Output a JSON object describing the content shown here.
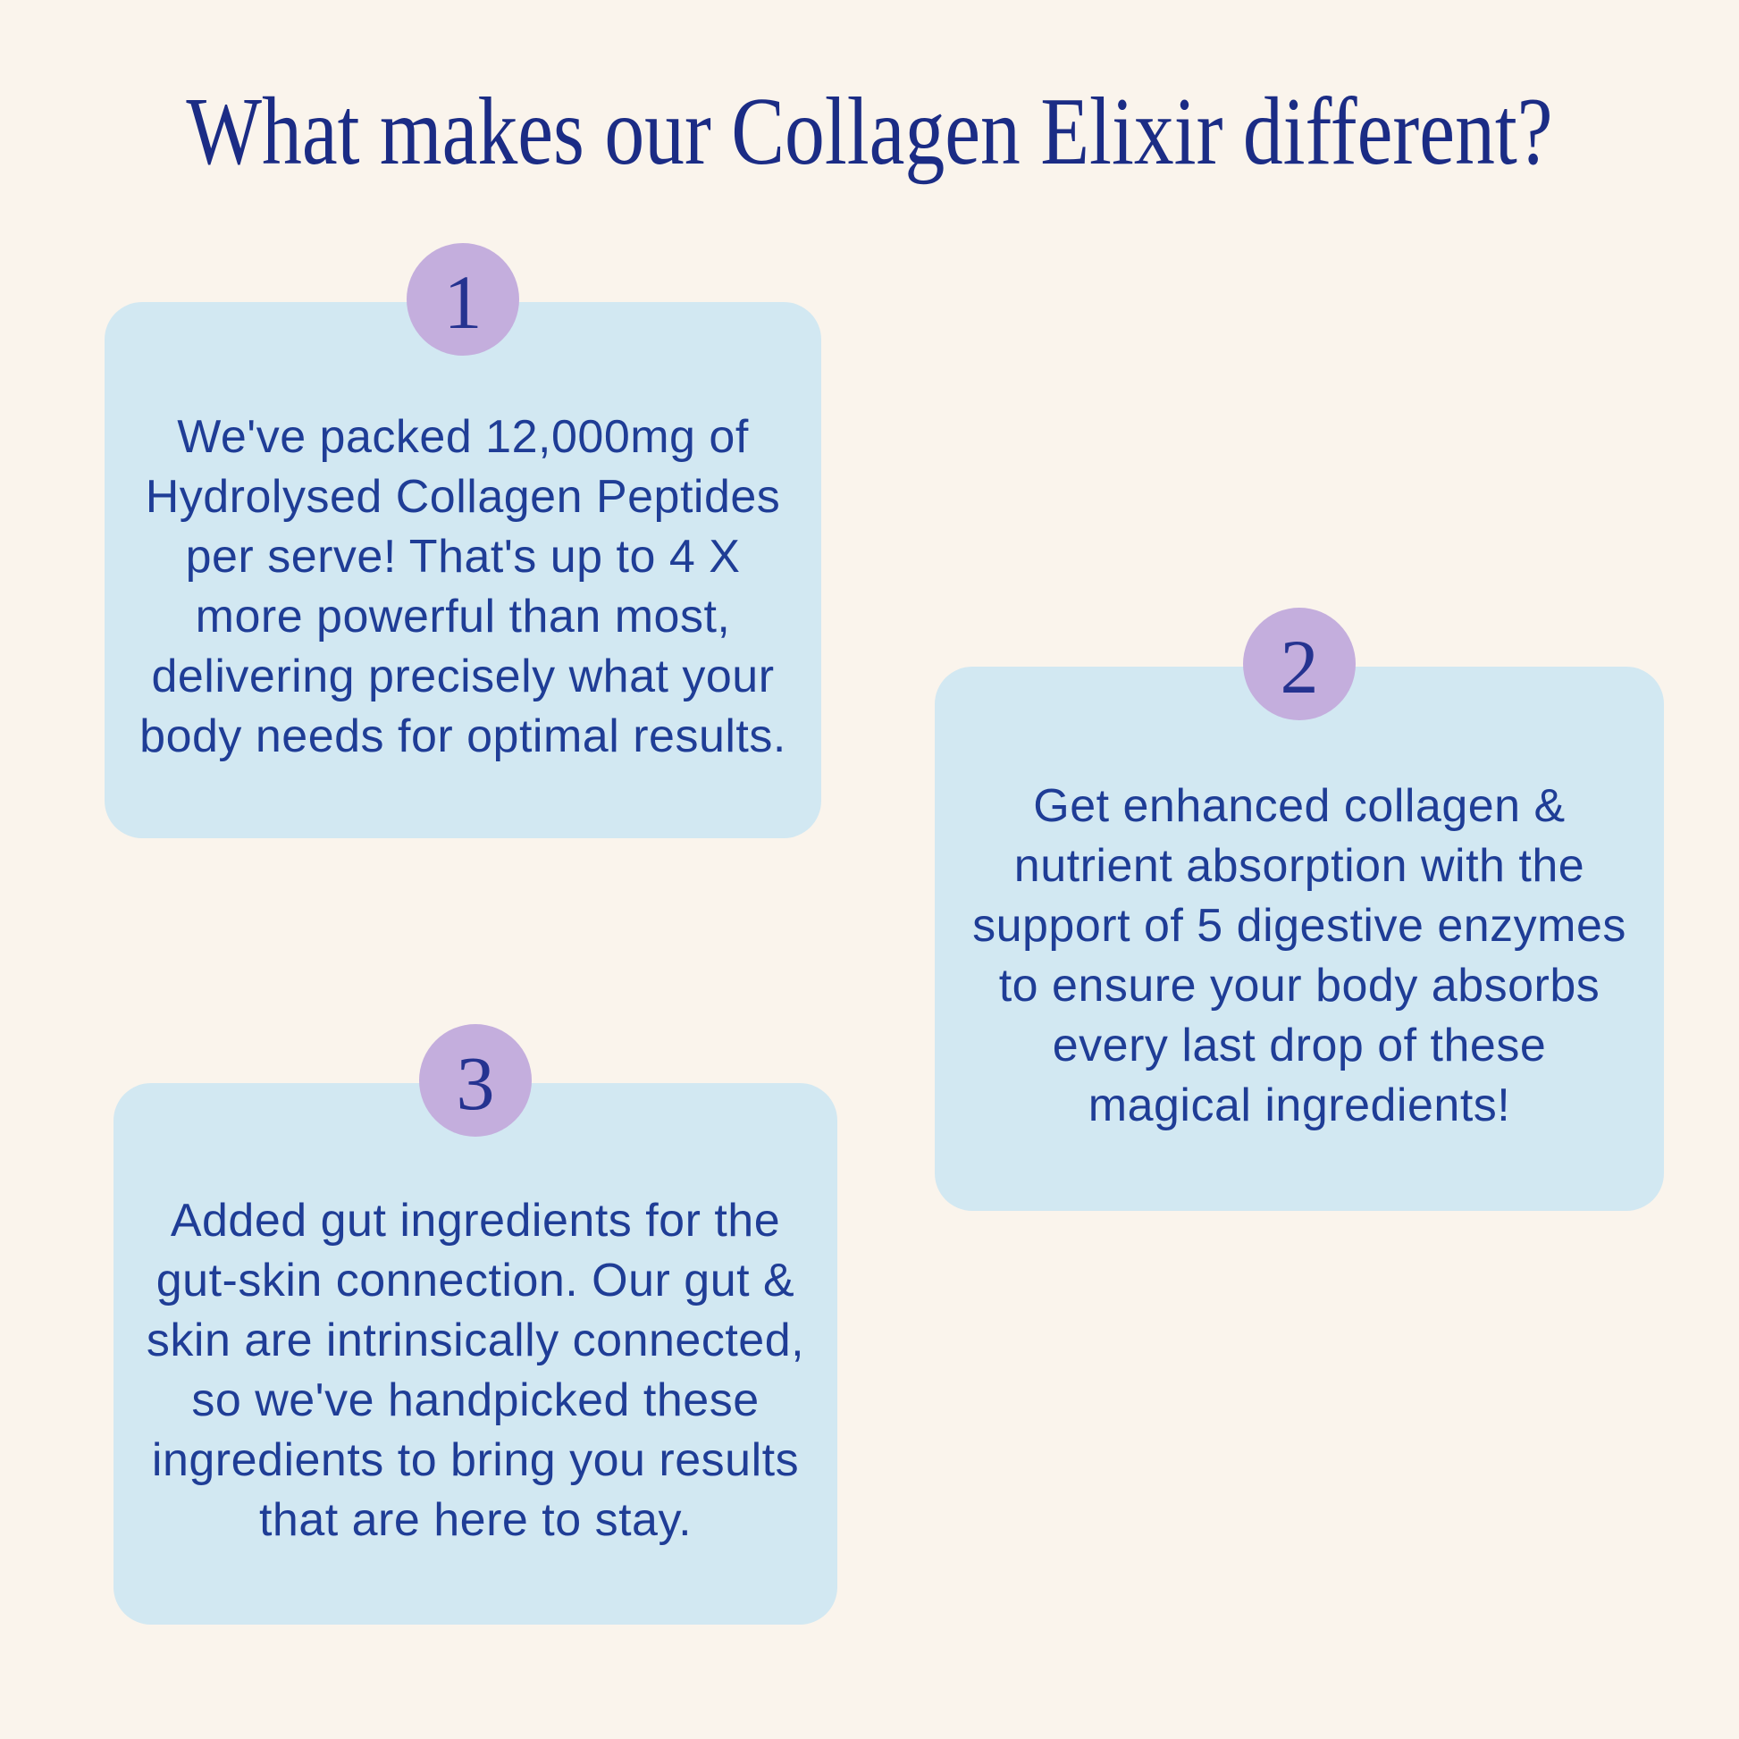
{
  "page": {
    "title": "What makes our Collagen Elixir different?",
    "colors": {
      "bg": "#faf4ec",
      "card": "#d2e8f2",
      "badge": "#c4aedd",
      "text": "#1f3d96",
      "navy": "#1b2c85"
    }
  },
  "cards": [
    {
      "number": "1",
      "text": "We've packed 12,000mg of\nHydrolysed Collagen Peptides\nper serve! That's up to 4 X\nmore powerful than most,\ndelivering precisely what your\nbody needs for optimal results."
    },
    {
      "number": "2",
      "text": "Get enhanced collagen &\nnutrient absorption with the\nsupport of 5 digestive enzymes\nto ensure your body absorbs\nevery last drop of these\nmagical ingredients!"
    },
    {
      "number": "3",
      "text": "Added gut ingredients for the\ngut-skin connection. Our gut &\nskin are intrinsically connected,\nso we've handpicked these\ningredients to bring you results\nthat are here to stay."
    }
  ]
}
